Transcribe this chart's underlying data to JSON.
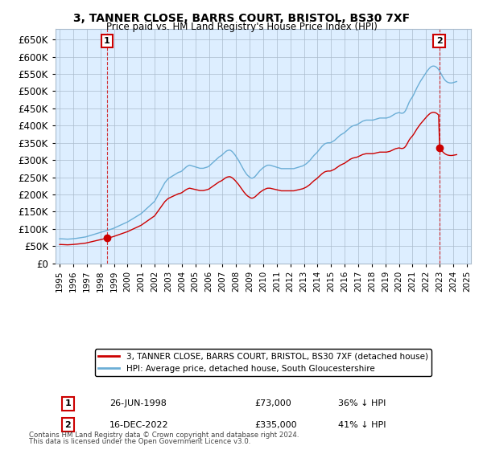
{
  "title": "3, TANNER CLOSE, BARRS COURT, BRISTOL, BS30 7XF",
  "subtitle": "Price paid vs. HM Land Registry's House Price Index (HPI)",
  "ylim": [
    0,
    680000
  ],
  "yticks": [
    0,
    50000,
    100000,
    150000,
    200000,
    250000,
    300000,
    350000,
    400000,
    450000,
    500000,
    550000,
    600000,
    650000
  ],
  "hpi_color": "#6baed6",
  "price_color": "#cc0000",
  "annotation_box_color": "#cc0000",
  "plot_bg_color": "#ddeeff",
  "point1": {
    "date_num": 1998.49,
    "price": 73000,
    "label": "1",
    "date_str": "26-JUN-1998",
    "price_str": "£73,000",
    "pct_str": "36% ↓ HPI"
  },
  "point2": {
    "date_num": 2022.96,
    "price": 335000,
    "label": "2",
    "date_str": "16-DEC-2022",
    "price_str": "£335,000",
    "pct_str": "41% ↓ HPI"
  },
  "legend_line1": "3, TANNER CLOSE, BARRS COURT, BRISTOL, BS30 7XF (detached house)",
  "legend_line2": "HPI: Average price, detached house, South Gloucestershire",
  "footer1": "Contains HM Land Registry data © Crown copyright and database right 2024.",
  "footer2": "This data is licensed under the Open Government Licence v3.0.",
  "hpi_data": [
    [
      1995.0,
      71000
    ],
    [
      1995.083,
      71200
    ],
    [
      1995.167,
      71000
    ],
    [
      1995.25,
      70800
    ],
    [
      1995.333,
      70500
    ],
    [
      1995.417,
      70300
    ],
    [
      1995.5,
      70100
    ],
    [
      1995.583,
      70000
    ],
    [
      1995.667,
      70200
    ],
    [
      1995.75,
      70500
    ],
    [
      1995.833,
      70800
    ],
    [
      1995.917,
      71000
    ],
    [
      1996.0,
      71500
    ],
    [
      1996.083,
      71800
    ],
    [
      1996.167,
      72000
    ],
    [
      1996.25,
      72500
    ],
    [
      1996.333,
      73000
    ],
    [
      1996.417,
      73500
    ],
    [
      1996.5,
      74000
    ],
    [
      1996.583,
      74500
    ],
    [
      1996.667,
      75000
    ],
    [
      1996.75,
      75500
    ],
    [
      1996.833,
      76000
    ],
    [
      1996.917,
      76500
    ],
    [
      1997.0,
      77500
    ],
    [
      1997.083,
      78500
    ],
    [
      1997.167,
      79500
    ],
    [
      1997.25,
      80500
    ],
    [
      1997.333,
      81500
    ],
    [
      1997.417,
      82500
    ],
    [
      1997.5,
      83500
    ],
    [
      1997.583,
      84500
    ],
    [
      1997.667,
      85500
    ],
    [
      1997.75,
      86500
    ],
    [
      1997.833,
      87500
    ],
    [
      1997.917,
      88500
    ],
    [
      1998.0,
      89500
    ],
    [
      1998.083,
      90500
    ],
    [
      1998.167,
      91500
    ],
    [
      1998.25,
      92500
    ],
    [
      1998.333,
      93500
    ],
    [
      1998.417,
      94500
    ],
    [
      1998.5,
      95500
    ],
    [
      1998.583,
      96500
    ],
    [
      1998.667,
      97500
    ],
    [
      1998.75,
      98500
    ],
    [
      1998.833,
      99500
    ],
    [
      1998.917,
      100500
    ],
    [
      1999.0,
      102000
    ],
    [
      1999.083,
      103500
    ],
    [
      1999.167,
      105000
    ],
    [
      1999.25,
      106500
    ],
    [
      1999.333,
      108000
    ],
    [
      1999.417,
      109500
    ],
    [
      1999.5,
      111000
    ],
    [
      1999.583,
      112500
    ],
    [
      1999.667,
      114000
    ],
    [
      1999.75,
      115500
    ],
    [
      1999.833,
      117000
    ],
    [
      1999.917,
      118500
    ],
    [
      2000.0,
      120000
    ],
    [
      2000.083,
      122000
    ],
    [
      2000.167,
      124000
    ],
    [
      2000.25,
      126000
    ],
    [
      2000.333,
      128000
    ],
    [
      2000.417,
      130000
    ],
    [
      2000.5,
      132000
    ],
    [
      2000.583,
      134000
    ],
    [
      2000.667,
      136000
    ],
    [
      2000.75,
      138000
    ],
    [
      2000.833,
      140000
    ],
    [
      2000.917,
      142000
    ],
    [
      2001.0,
      144000
    ],
    [
      2001.083,
      147000
    ],
    [
      2001.167,
      150000
    ],
    [
      2001.25,
      153000
    ],
    [
      2001.333,
      156000
    ],
    [
      2001.417,
      159000
    ],
    [
      2001.5,
      162000
    ],
    [
      2001.583,
      165000
    ],
    [
      2001.667,
      168000
    ],
    [
      2001.75,
      171000
    ],
    [
      2001.833,
      174000
    ],
    [
      2001.917,
      177000
    ],
    [
      2002.0,
      180000
    ],
    [
      2002.083,
      186000
    ],
    [
      2002.167,
      192000
    ],
    [
      2002.25,
      198000
    ],
    [
      2002.333,
      204000
    ],
    [
      2002.417,
      210000
    ],
    [
      2002.5,
      216000
    ],
    [
      2002.583,
      222000
    ],
    [
      2002.667,
      228000
    ],
    [
      2002.75,
      234000
    ],
    [
      2002.833,
      238000
    ],
    [
      2002.917,
      242000
    ],
    [
      2003.0,
      246000
    ],
    [
      2003.083,
      248000
    ],
    [
      2003.167,
      250000
    ],
    [
      2003.25,
      252000
    ],
    [
      2003.333,
      254000
    ],
    [
      2003.417,
      256000
    ],
    [
      2003.5,
      258000
    ],
    [
      2003.583,
      260000
    ],
    [
      2003.667,
      262000
    ],
    [
      2003.75,
      264000
    ],
    [
      2003.833,
      265000
    ],
    [
      2003.917,
      266000
    ],
    [
      2004.0,
      268000
    ],
    [
      2004.083,
      271000
    ],
    [
      2004.167,
      274000
    ],
    [
      2004.25,
      277000
    ],
    [
      2004.333,
      280000
    ],
    [
      2004.417,
      282000
    ],
    [
      2004.5,
      284000
    ],
    [
      2004.583,
      285000
    ],
    [
      2004.667,
      284000
    ],
    [
      2004.75,
      283000
    ],
    [
      2004.833,
      282000
    ],
    [
      2004.917,
      281000
    ],
    [
      2005.0,
      280000
    ],
    [
      2005.083,
      279000
    ],
    [
      2005.167,
      278000
    ],
    [
      2005.25,
      277000
    ],
    [
      2005.333,
      276000
    ],
    [
      2005.417,
      276000
    ],
    [
      2005.5,
      276000
    ],
    [
      2005.583,
      276000
    ],
    [
      2005.667,
      277000
    ],
    [
      2005.75,
      278000
    ],
    [
      2005.833,
      279000
    ],
    [
      2005.917,
      280000
    ],
    [
      2006.0,
      282000
    ],
    [
      2006.083,
      285000
    ],
    [
      2006.167,
      288000
    ],
    [
      2006.25,
      291000
    ],
    [
      2006.333,
      294000
    ],
    [
      2006.417,
      297000
    ],
    [
      2006.5,
      300000
    ],
    [
      2006.583,
      303000
    ],
    [
      2006.667,
      306000
    ],
    [
      2006.75,
      309000
    ],
    [
      2006.833,
      311000
    ],
    [
      2006.917,
      313000
    ],
    [
      2007.0,
      316000
    ],
    [
      2007.083,
      319000
    ],
    [
      2007.167,
      322000
    ],
    [
      2007.25,
      325000
    ],
    [
      2007.333,
      327000
    ],
    [
      2007.417,
      328000
    ],
    [
      2007.5,
      329000
    ],
    [
      2007.583,
      328000
    ],
    [
      2007.667,
      326000
    ],
    [
      2007.75,
      323000
    ],
    [
      2007.833,
      319000
    ],
    [
      2007.917,
      315000
    ],
    [
      2008.0,
      310000
    ],
    [
      2008.083,
      305000
    ],
    [
      2008.167,
      300000
    ],
    [
      2008.25,
      294000
    ],
    [
      2008.333,
      288000
    ],
    [
      2008.417,
      282000
    ],
    [
      2008.5,
      276000
    ],
    [
      2008.583,
      270000
    ],
    [
      2008.667,
      265000
    ],
    [
      2008.75,
      260000
    ],
    [
      2008.833,
      256000
    ],
    [
      2008.917,
      253000
    ],
    [
      2009.0,
      250000
    ],
    [
      2009.083,
      248000
    ],
    [
      2009.167,
      247000
    ],
    [
      2009.25,
      248000
    ],
    [
      2009.333,
      250000
    ],
    [
      2009.417,
      253000
    ],
    [
      2009.5,
      257000
    ],
    [
      2009.583,
      261000
    ],
    [
      2009.667,
      265000
    ],
    [
      2009.75,
      269000
    ],
    [
      2009.833,
      272000
    ],
    [
      2009.917,
      275000
    ],
    [
      2010.0,
      278000
    ],
    [
      2010.083,
      280000
    ],
    [
      2010.167,
      282000
    ],
    [
      2010.25,
      284000
    ],
    [
      2010.333,
      285000
    ],
    [
      2010.417,
      285000
    ],
    [
      2010.5,
      285000
    ],
    [
      2010.583,
      284000
    ],
    [
      2010.667,
      283000
    ],
    [
      2010.75,
      282000
    ],
    [
      2010.833,
      281000
    ],
    [
      2010.917,
      280000
    ],
    [
      2011.0,
      279000
    ],
    [
      2011.083,
      278000
    ],
    [
      2011.167,
      277000
    ],
    [
      2011.25,
      276000
    ],
    [
      2011.333,
      275000
    ],
    [
      2011.417,
      275000
    ],
    [
      2011.5,
      275000
    ],
    [
      2011.583,
      275000
    ],
    [
      2011.667,
      275000
    ],
    [
      2011.75,
      275000
    ],
    [
      2011.833,
      275000
    ],
    [
      2011.917,
      275000
    ],
    [
      2012.0,
      275000
    ],
    [
      2012.083,
      275000
    ],
    [
      2012.167,
      275000
    ],
    [
      2012.25,
      275000
    ],
    [
      2012.333,
      276000
    ],
    [
      2012.417,
      277000
    ],
    [
      2012.5,
      278000
    ],
    [
      2012.583,
      279000
    ],
    [
      2012.667,
      280000
    ],
    [
      2012.75,
      281000
    ],
    [
      2012.833,
      282000
    ],
    [
      2012.917,
      283000
    ],
    [
      2013.0,
      285000
    ],
    [
      2013.083,
      287000
    ],
    [
      2013.167,
      289000
    ],
    [
      2013.25,
      292000
    ],
    [
      2013.333,
      295000
    ],
    [
      2013.417,
      298000
    ],
    [
      2013.5,
      302000
    ],
    [
      2013.583,
      306000
    ],
    [
      2013.667,
      310000
    ],
    [
      2013.75,
      314000
    ],
    [
      2013.833,
      317000
    ],
    [
      2013.917,
      320000
    ],
    [
      2014.0,
      324000
    ],
    [
      2014.083,
      328000
    ],
    [
      2014.167,
      332000
    ],
    [
      2014.25,
      336000
    ],
    [
      2014.333,
      340000
    ],
    [
      2014.417,
      343000
    ],
    [
      2014.5,
      346000
    ],
    [
      2014.583,
      348000
    ],
    [
      2014.667,
      349000
    ],
    [
      2014.75,
      350000
    ],
    [
      2014.833,
      350000
    ],
    [
      2014.917,
      350000
    ],
    [
      2015.0,
      351000
    ],
    [
      2015.083,
      353000
    ],
    [
      2015.167,
      355000
    ],
    [
      2015.25,
      357000
    ],
    [
      2015.333,
      360000
    ],
    [
      2015.417,
      363000
    ],
    [
      2015.5,
      366000
    ],
    [
      2015.583,
      369000
    ],
    [
      2015.667,
      372000
    ],
    [
      2015.75,
      374000
    ],
    [
      2015.833,
      376000
    ],
    [
      2015.917,
      378000
    ],
    [
      2016.0,
      380000
    ],
    [
      2016.083,
      383000
    ],
    [
      2016.167,
      386000
    ],
    [
      2016.25,
      389000
    ],
    [
      2016.333,
      392000
    ],
    [
      2016.417,
      395000
    ],
    [
      2016.5,
      397000
    ],
    [
      2016.583,
      399000
    ],
    [
      2016.667,
      400000
    ],
    [
      2016.75,
      401000
    ],
    [
      2016.833,
      402000
    ],
    [
      2016.917,
      403000
    ],
    [
      2017.0,
      405000
    ],
    [
      2017.083,
      407000
    ],
    [
      2017.167,
      409000
    ],
    [
      2017.25,
      411000
    ],
    [
      2017.333,
      413000
    ],
    [
      2017.417,
      414000
    ],
    [
      2017.5,
      415000
    ],
    [
      2017.583,
      416000
    ],
    [
      2017.667,
      416000
    ],
    [
      2017.75,
      416000
    ],
    [
      2017.833,
      416000
    ],
    [
      2017.917,
      416000
    ],
    [
      2018.0,
      416000
    ],
    [
      2018.083,
      416000
    ],
    [
      2018.167,
      417000
    ],
    [
      2018.25,
      418000
    ],
    [
      2018.333,
      419000
    ],
    [
      2018.417,
      420000
    ],
    [
      2018.5,
      421000
    ],
    [
      2018.583,
      422000
    ],
    [
      2018.667,
      422000
    ],
    [
      2018.75,
      422000
    ],
    [
      2018.833,
      422000
    ],
    [
      2018.917,
      422000
    ],
    [
      2019.0,
      422000
    ],
    [
      2019.083,
      422000
    ],
    [
      2019.167,
      423000
    ],
    [
      2019.25,
      424000
    ],
    [
      2019.333,
      425000
    ],
    [
      2019.417,
      427000
    ],
    [
      2019.5,
      429000
    ],
    [
      2019.583,
      431000
    ],
    [
      2019.667,
      433000
    ],
    [
      2019.75,
      435000
    ],
    [
      2019.833,
      436000
    ],
    [
      2019.917,
      437000
    ],
    [
      2020.0,
      438000
    ],
    [
      2020.083,
      437000
    ],
    [
      2020.167,
      436000
    ],
    [
      2020.25,
      436000
    ],
    [
      2020.333,
      437000
    ],
    [
      2020.417,
      440000
    ],
    [
      2020.5,
      445000
    ],
    [
      2020.583,
      452000
    ],
    [
      2020.667,
      460000
    ],
    [
      2020.75,
      468000
    ],
    [
      2020.833,
      474000
    ],
    [
      2020.917,
      479000
    ],
    [
      2021.0,
      484000
    ],
    [
      2021.083,
      490000
    ],
    [
      2021.167,
      497000
    ],
    [
      2021.25,
      504000
    ],
    [
      2021.333,
      511000
    ],
    [
      2021.417,
      517000
    ],
    [
      2021.5,
      523000
    ],
    [
      2021.583,
      529000
    ],
    [
      2021.667,
      534000
    ],
    [
      2021.75,
      539000
    ],
    [
      2021.833,
      544000
    ],
    [
      2021.917,
      549000
    ],
    [
      2022.0,
      554000
    ],
    [
      2022.083,
      559000
    ],
    [
      2022.167,
      563000
    ],
    [
      2022.25,
      567000
    ],
    [
      2022.333,
      570000
    ],
    [
      2022.417,
      572000
    ],
    [
      2022.5,
      573000
    ],
    [
      2022.583,
      573000
    ],
    [
      2022.667,
      572000
    ],
    [
      2022.75,
      570000
    ],
    [
      2022.833,
      567000
    ],
    [
      2022.917,
      563000
    ],
    [
      2023.0,
      558000
    ],
    [
      2023.083,
      552000
    ],
    [
      2023.167,
      546000
    ],
    [
      2023.25,
      540000
    ],
    [
      2023.333,
      535000
    ],
    [
      2023.417,
      531000
    ],
    [
      2023.5,
      528000
    ],
    [
      2023.583,
      526000
    ],
    [
      2023.667,
      525000
    ],
    [
      2023.75,
      524000
    ],
    [
      2023.833,
      524000
    ],
    [
      2023.917,
      524000
    ],
    [
      2024.0,
      525000
    ],
    [
      2024.083,
      526000
    ],
    [
      2024.167,
      527000
    ],
    [
      2024.25,
      528000
    ]
  ],
  "background_color": "#ffffff",
  "plot_bg": "#ddeeff",
  "grid_color": "#aabbcc"
}
